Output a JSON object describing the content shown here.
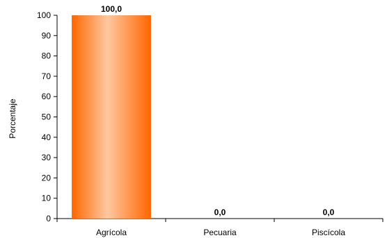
{
  "chart_data": {
    "type": "bar",
    "categories": [
      "Agrícola",
      "Pecuaria",
      "Piscícola"
    ],
    "values": [
      100.0,
      0.0,
      0.0
    ],
    "data_labels": [
      "100,0",
      "0,0",
      "0,0"
    ],
    "ylabel": "Porcentaje",
    "xlabel": "",
    "ylim": [
      0,
      100
    ],
    "yticks": [
      "0",
      "10",
      "20",
      "30",
      "40",
      "50",
      "60",
      "70",
      "80",
      "90",
      "100"
    ],
    "grid": false,
    "legend": "none",
    "bar_color": "#ff6600",
    "bar_highlight": "#ffc8a0"
  }
}
